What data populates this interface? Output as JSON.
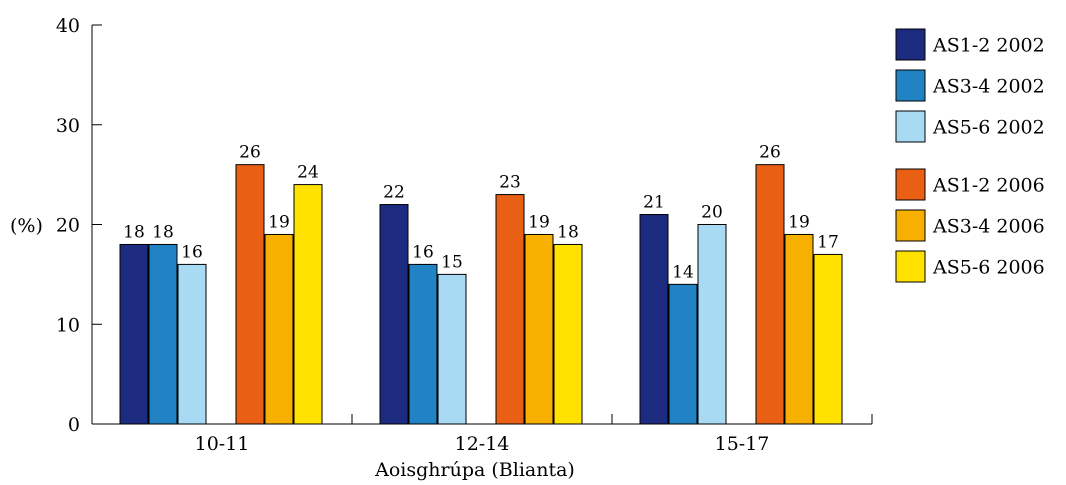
{
  "chart_data": {
    "type": "bar",
    "categories": [
      "10-11",
      "12-14",
      "15-17"
    ],
    "series": [
      {
        "name": "AS1-2 2002",
        "color": "#1c2a80",
        "values": [
          18,
          22,
          21
        ]
      },
      {
        "name": "AS3-4 2002",
        "color": "#2183c4",
        "values": [
          18,
          16,
          14
        ]
      },
      {
        "name": "AS5-6 2002",
        "color": "#a8daf4",
        "values": [
          16,
          15,
          20
        ]
      },
      {
        "name": "AS1-2 2006",
        "color": "#e95f14",
        "values": [
          26,
          23,
          26
        ]
      },
      {
        "name": "AS3-4 2006",
        "color": "#f7b000",
        "values": [
          19,
          19,
          19
        ]
      },
      {
        "name": "AS5-6 2006",
        "color": "#ffe200",
        "values": [
          24,
          18,
          17
        ]
      }
    ],
    "xlabel": "Aoisghrúpa (Blianta)",
    "ylabel": "(%)",
    "ylim": [
      0,
      40
    ],
    "yticks": [
      0,
      10,
      20,
      30,
      40
    ],
    "legend_position": "right",
    "grid": false
  }
}
